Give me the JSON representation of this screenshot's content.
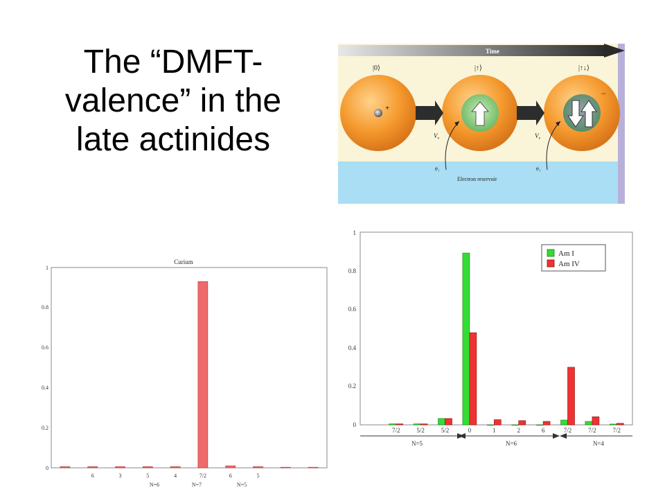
{
  "slide": {
    "title_line1": "The “DMFT-",
    "title_line2": "valence” in the",
    "title_line3": "late actinides"
  },
  "diagram": {
    "time_label": "Time",
    "states": [
      "|0⟩",
      "|↑⟩",
      "|↑↓⟩"
    ],
    "plus_sign": "+",
    "minus_sign": "−",
    "hop_label": "V",
    "hop_subscript": "v",
    "electron_label": "e",
    "electron_sub": "↑",
    "reservoir_label": "Electron reservoir",
    "colors": {
      "background": "#faf4d8",
      "reservoir": "#a9def4",
      "sphere": "#f59a2e",
      "inner": "#7cc576",
      "time_bar": "#3a3a3a"
    }
  },
  "chart_data": [
    {
      "type": "bar",
      "title": "Curium",
      "ylim": [
        0,
        1
      ],
      "yticks": [
        "0",
        "0.2",
        "0.4",
        "0.6",
        "0.8",
        "1"
      ],
      "categories": [
        "",
        "6",
        "3",
        "5",
        "4",
        "7/2",
        "6",
        "5",
        "",
        ""
      ],
      "series": [
        {
          "values": [
            0.006,
            0.006,
            0.006,
            0.006,
            0.006,
            0.93,
            0.01,
            0.006,
            0.003,
            0.003
          ],
          "color": "#ef6b6b"
        }
      ],
      "groups": [
        "N=6",
        "N=7",
        "N=5"
      ],
      "grid": false
    },
    {
      "type": "bar",
      "ylim": [
        0,
        1
      ],
      "yticks": [
        "0",
        "0.2",
        "0.4",
        "0.6",
        "0.8",
        "1"
      ],
      "categories": [
        "7/2",
        "5/2",
        "5/2",
        "0",
        "1",
        "2",
        "6",
        "7/2",
        "7/2",
        "7/2"
      ],
      "series": [
        {
          "name": "Am I",
          "values": [
            0.005,
            0.005,
            0.033,
            0.895,
            0,
            0,
            0,
            0.025,
            0.018,
            0.004
          ],
          "color": "#33dd33"
        },
        {
          "name": "Am IV",
          "values": [
            0.005,
            0.005,
            0.033,
            0.48,
            0.027,
            0.022,
            0.018,
            0.3,
            0.042,
            0.008
          ],
          "color": "#ee3333"
        }
      ],
      "groups": [
        "N=5",
        "N=6",
        "N=4"
      ],
      "legend": "top-right",
      "grid": false
    }
  ]
}
